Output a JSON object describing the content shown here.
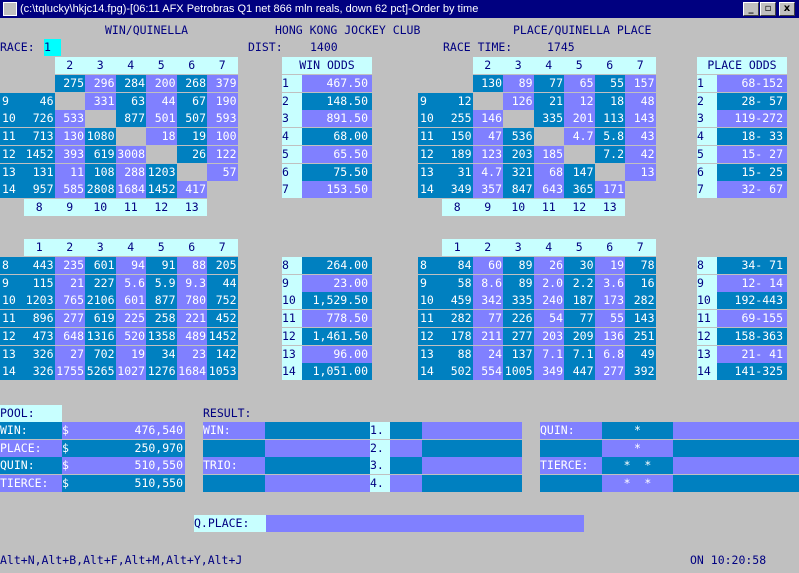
{
  "window": {
    "title": "(c:\\tqlucky\\hkjc14.fpg)-[06:11 AFX  Petrobras Q1 net 866 mln reals, down 62 pct]-Order by time",
    "min": "_",
    "max": "▫",
    "close": "x"
  },
  "header": {
    "left": "WIN/QUINELLA",
    "center": "HONG KONG JOCKEY CLUB",
    "right": "PLACE/QUINELLA PLACE"
  },
  "race": {
    "label": "RACE:",
    "value": "1",
    "dist_label": "DIST:",
    "dist_value": "1400",
    "time_label": "RACE TIME:",
    "time_value": "1745"
  },
  "win_odds": {
    "title": "WIN ODDS",
    "values": [
      "467.50",
      "148.50",
      "891.50",
      "68.00",
      "65.50",
      "75.50",
      "153.50",
      "264.00",
      "23.00",
      "1,529.50",
      "778.50",
      "1,461.50",
      "96.00",
      "1,051.00"
    ]
  },
  "place_odds": {
    "title": "PLACE ODDS",
    "values": [
      "68-152",
      "28- 57",
      "119-272",
      "18- 33",
      "15- 27",
      "15- 25",
      "32- 67",
      "34- 71",
      "12- 14",
      "192-443",
      "69-155",
      "158-363",
      "21- 41",
      "141-325"
    ]
  },
  "quinella": {
    "top_cols": [
      "2",
      "3",
      "4",
      "5",
      "6",
      "7"
    ],
    "top_bottom_cols": [
      "8",
      "9",
      "10",
      "11",
      "12",
      "13"
    ],
    "top_rows": [
      "",
      "9",
      "10",
      "11",
      "12",
      "13",
      "14"
    ],
    "top": [
      [
        "",
        "275",
        "296",
        "284",
        "200",
        "268",
        "379"
      ],
      [
        "46",
        "",
        "331",
        "63",
        "44",
        "67",
        "190"
      ],
      [
        "726",
        "533",
        "",
        "877",
        "501",
        "507",
        "593"
      ],
      [
        "713",
        "130",
        "1080",
        "",
        "18",
        "19",
        "100"
      ],
      [
        "1452",
        "393",
        "619",
        "3008",
        "",
        "26",
        "122"
      ],
      [
        "131",
        "11",
        "108",
        "288",
        "1203",
        "",
        "57"
      ],
      [
        "957",
        "585",
        "2808",
        "1684",
        "1452",
        "417",
        ""
      ]
    ],
    "bottom_cols": [
      "1",
      "2",
      "3",
      "4",
      "5",
      "6",
      "7"
    ],
    "bottom_rows": [
      "8",
      "9",
      "10",
      "11",
      "12",
      "13",
      "14"
    ],
    "bottom": [
      [
        "443",
        "235",
        "601",
        "94",
        "91",
        "88",
        "205"
      ],
      [
        "115",
        "21",
        "227",
        "5.6",
        "5.9",
        "9.3",
        "44"
      ],
      [
        "1203",
        "765",
        "2106",
        "601",
        "877",
        "780",
        "752"
      ],
      [
        "896",
        "277",
        "619",
        "225",
        "258",
        "221",
        "452"
      ],
      [
        "473",
        "648",
        "1316",
        "520",
        "1358",
        "489",
        "1452"
      ],
      [
        "326",
        "27",
        "702",
        "19",
        "34",
        "23",
        "142"
      ],
      [
        "326",
        "1755",
        "5265",
        "1027",
        "1276",
        "1684",
        "1053"
      ]
    ]
  },
  "qplace": {
    "top": [
      [
        "",
        "130",
        "89",
        "77",
        "65",
        "55",
        "157"
      ],
      [
        "12",
        "",
        "126",
        "21",
        "12",
        "18",
        "48"
      ],
      [
        "255",
        "146",
        "",
        "335",
        "201",
        "113",
        "143"
      ],
      [
        "150",
        "47",
        "536",
        "",
        "4.7",
        "5.8",
        "43"
      ],
      [
        "189",
        "123",
        "203",
        "185",
        "",
        "7.2",
        "42"
      ],
      [
        "31",
        "4.7",
        "321",
        "68",
        "147",
        "",
        "13"
      ],
      [
        "349",
        "357",
        "847",
        "643",
        "365",
        "171",
        ""
      ]
    ],
    "bottom": [
      [
        "84",
        "60",
        "89",
        "26",
        "30",
        "19",
        "78"
      ],
      [
        "58",
        "8.6",
        "89",
        "2.0",
        "2.2",
        "3.6",
        "16"
      ],
      [
        "459",
        "342",
        "335",
        "240",
        "187",
        "173",
        "282"
      ],
      [
        "282",
        "77",
        "226",
        "54",
        "77",
        "55",
        "143"
      ],
      [
        "178",
        "211",
        "277",
        "203",
        "209",
        "136",
        "251"
      ],
      [
        "88",
        "24",
        "137",
        "7.1",
        "7.1",
        "6.8",
        "49"
      ],
      [
        "502",
        "554",
        "1005",
        "349",
        "447",
        "277",
        "392"
      ]
    ]
  },
  "pool": {
    "title": "POOL:",
    "items": [
      {
        "label": "WIN:",
        "cur": "$",
        "value": "476,540"
      },
      {
        "label": "PLACE:",
        "cur": "$",
        "value": "250,970"
      },
      {
        "label": "QUIN:",
        "cur": "$",
        "value": "510,550"
      },
      {
        "label": "TIERCE:",
        "cur": "$",
        "value": "510,550"
      }
    ]
  },
  "result": {
    "title": "RESULT:",
    "win": "WIN:",
    "trio": "TRIO:",
    "pos": [
      "1.",
      "2.",
      "3.",
      "4."
    ],
    "quin": "QUIN:",
    "tierce": "TIERCE:",
    "star": "*",
    "stars": "*  *",
    "qplace": "Q.PLACE:"
  },
  "footer": {
    "keys": "Alt+N,Alt+B,Alt+F,Alt+M,Alt+Y,Alt+J",
    "status": "ON 10:20:58"
  },
  "colors": {
    "purple": "#8080ff",
    "blue": "#0080c0",
    "cyan": "#c8ffff",
    "grey": "#c0c0c0",
    "text_dark": "#000080",
    "text_white": "#ffffff"
  }
}
